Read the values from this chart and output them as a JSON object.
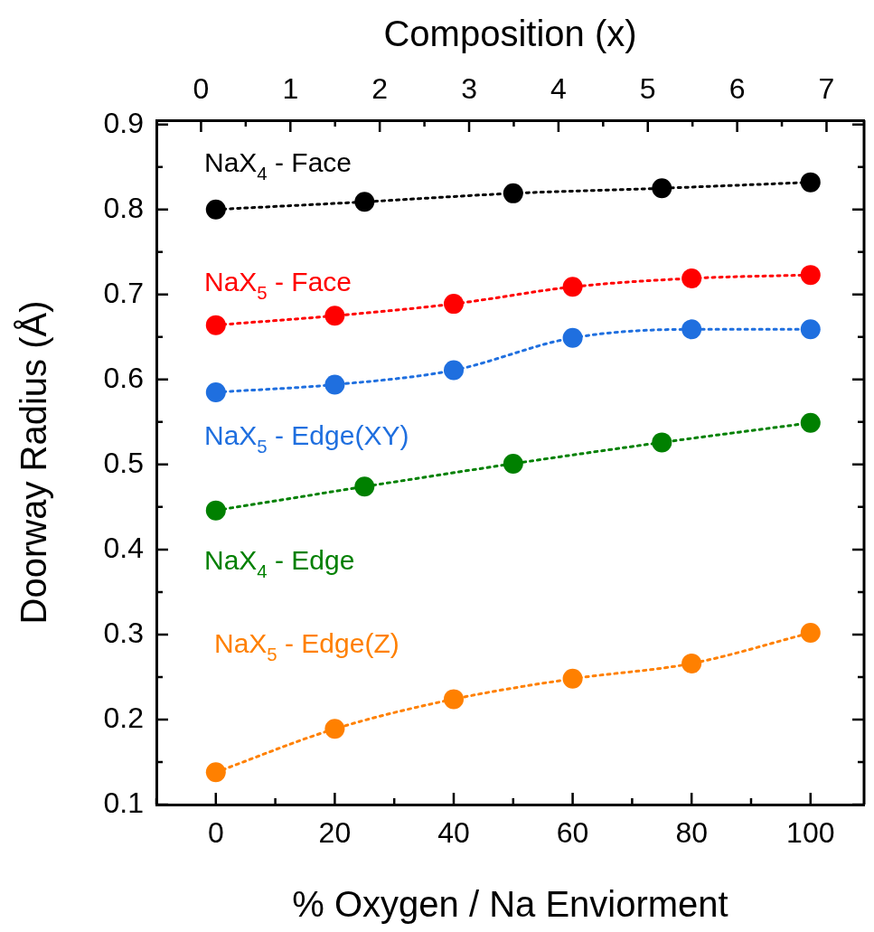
{
  "chart_data": {
    "type": "line",
    "xlabel": "% Oxygen / Na Enviorment",
    "ylabel": "Doorway Radius (Å)",
    "x2label": "Composition (x)",
    "xlim": [
      -10,
      109
    ],
    "xticks": [
      {
        "value": -10,
        "label": null
      },
      0,
      {
        "value": 10,
        "label": null
      },
      20,
      {
        "value": 30,
        "label": null
      },
      40,
      {
        "value": 50,
        "label": null
      },
      60,
      {
        "value": 70,
        "label": null
      },
      80,
      {
        "value": 90,
        "label": null
      },
      100
    ],
    "x2lim": [
      -0.5,
      7.42
    ],
    "x2ticks": [
      0,
      {
        "value": 0.5,
        "label": null
      },
      1,
      {
        "value": 1.5,
        "label": null
      },
      2,
      {
        "value": 2.5,
        "label": null
      },
      3,
      {
        "value": 3.5,
        "label": null
      },
      4,
      {
        "value": 4.5,
        "label": null
      },
      5,
      {
        "value": 5.5,
        "label": null
      },
      6,
      {
        "value": 6.5,
        "label": null
      },
      7
    ],
    "ylim": [
      0.1,
      0.905
    ],
    "yticks": [
      0.1,
      {
        "value": 0.15,
        "label": null
      },
      0.2,
      {
        "value": 0.25,
        "label": null
      },
      0.3,
      {
        "value": 0.35,
        "label": null
      },
      0.4,
      {
        "value": 0.45,
        "label": null
      },
      0.5,
      {
        "value": 0.55,
        "label": null
      },
      0.6,
      {
        "value": 0.65,
        "label": null
      },
      0.7,
      {
        "value": 0.75,
        "label": null
      },
      0.8,
      {
        "value": 0.85,
        "label": null
      },
      0.9
    ],
    "grid": false,
    "legend": false,
    "marker": "circle",
    "line_style": "dotted",
    "series": [
      {
        "name": "NaX$_{4}$ - Face",
        "color": "#000000",
        "x": [
          0,
          25,
          50,
          75,
          100
        ],
        "values": [
          0.8,
          0.809,
          0.819,
          0.825,
          0.832
        ]
      },
      {
        "name": "NaX$_{5}$ - Face",
        "color": "#ff0000",
        "x": [
          0,
          20,
          40,
          60,
          80,
          100
        ],
        "values": [
          0.664,
          0.675,
          0.689,
          0.709,
          0.719,
          0.723
        ]
      },
      {
        "name": "NaX$_{5}$ - Edge(XY)",
        "color": "#1f6fdf",
        "x": [
          0,
          20,
          40,
          60,
          80,
          100
        ],
        "values": [
          0.585,
          0.594,
          0.611,
          0.649,
          0.659,
          0.659
        ]
      },
      {
        "name": "NaX$_{4}$ - Edge",
        "color": "#008000",
        "x": [
          0,
          25,
          50,
          75,
          100
        ],
        "values": [
          0.446,
          0.474,
          0.501,
          0.526,
          0.549
        ]
      },
      {
        "name": "NaX$_{5}$ - Edge(Z)",
        "color": "#ff8000",
        "x": [
          0,
          20,
          40,
          60,
          80,
          100
        ],
        "values": [
          0.138,
          0.189,
          0.224,
          0.248,
          0.266,
          0.302
        ]
      }
    ]
  }
}
